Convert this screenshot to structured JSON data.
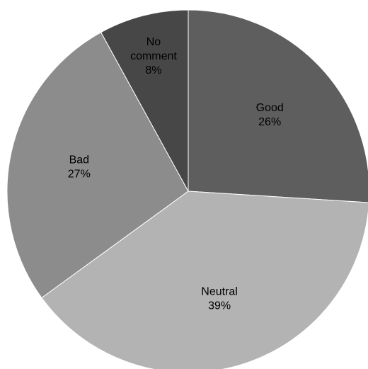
{
  "chart_data": {
    "type": "pie",
    "title": "",
    "slices": [
      {
        "label": "Good",
        "value": 26,
        "value_label": "26%",
        "color": "#5e5e5e"
      },
      {
        "label": "Neutral",
        "value": 39,
        "value_label": "39%",
        "color": "#b3b3b3"
      },
      {
        "label": "Bad",
        "value": 27,
        "value_label": "27%",
        "color": "#8c8c8c"
      },
      {
        "label": "No comment",
        "value": 8,
        "value_label": "8%",
        "color": "#474747"
      }
    ],
    "start": "12 o'clock",
    "direction": "clockwise",
    "legend": "none"
  }
}
